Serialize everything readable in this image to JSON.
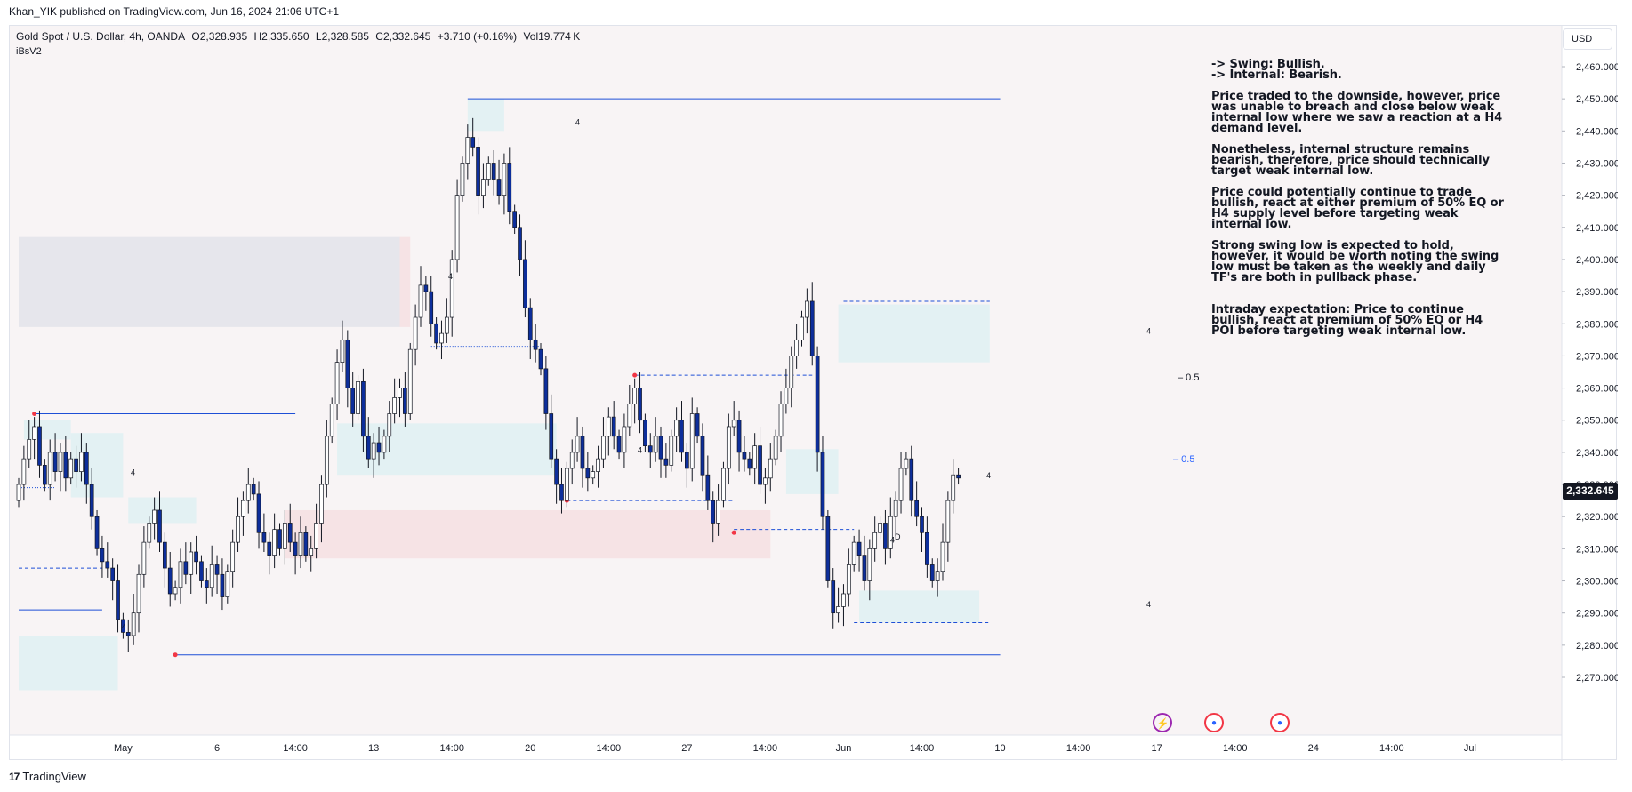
{
  "header": {
    "publish_line": "Khan_YIK published on TradingView.com, Jun 16, 2024 21:06 UTC+1"
  },
  "legend": {
    "symbol": "Gold Spot / U.S. Dollar, 4h, OANDA",
    "open": "O2,328.935",
    "high": "H2,335.650",
    "low": "L2,328.585",
    "close": "C2,332.645",
    "change": "+3.710 (+0.16%)",
    "volume": "Vol19.774 K",
    "indicator": "iBsV2"
  },
  "currency": "USD",
  "last_price_label": "2,332.645",
  "brand": {
    "name": "TradingView",
    "logo": "17"
  },
  "events": {
    "bolt_icon": "⚡",
    "flag_icon": "●"
  },
  "notes": {
    "swing": "-> Swing:  Bullish.",
    "internal": "-> Internal:  Bearish.",
    "p1": "Price traded to the downside, however, price was unable to breach and close below weak internal low where we saw a reaction at a H4 demand level.",
    "p2": "Nonetheless, internal structure remains bearish, therefore, price should technically target weak internal low.",
    "p3": "Price could potentially continue to trade bullish, react at either premium of 50% EQ or H4 supply level before targeting weak internal low.",
    "p4": "Strong swing low is expected to hold, however, it would be worth noting the swing low must be taken as the weekly and daily TF's are both in pullback phase.",
    "p5": "Intraday expectation: Price to continue bullish, react at premium of 50% EQ or H4 POI before targeting weak internal low."
  },
  "colors": {
    "bg": "#f8f4f5",
    "bull": "#ffffff",
    "bear": "#0d2e9b",
    "wick": "#131722",
    "zone_blue": "#e3f1f3",
    "zone_red": "#f6e3e5",
    "zone_grey": "#e6e6ec",
    "line_blue": "#1e4fd6",
    "pivot": "#f23645"
  },
  "chart_data": {
    "type": "candlestick",
    "title": "Gold Spot / U.S. Dollar, 4h, OANDA",
    "ylim": [
      2262,
      2468
    ],
    "y_ticks": [
      2270,
      2280,
      2290,
      2300,
      2310,
      2320,
      2330,
      2340,
      2350,
      2360,
      2370,
      2380,
      2390,
      2400,
      2410,
      2420,
      2430,
      2440,
      2450,
      2460
    ],
    "y_tick_labels": [
      "2,270.000",
      "2,280.000",
      "2,290.000",
      "2,300.000",
      "2,310.000",
      "2,320.000",
      "2,330.000",
      "2,340.000",
      "2,350.000",
      "2,360.000",
      "2,370.000",
      "2,380.000",
      "2,390.000",
      "2,400.000",
      "2,410.000",
      "2,420.000",
      "2,430.000",
      "2,440.000",
      "2,450.000",
      "2,460.000"
    ],
    "x_ticks": [
      {
        "label": "May",
        "bar": 20
      },
      {
        "label": "6",
        "bar": 38
      },
      {
        "label": "14:00",
        "bar": 53
      },
      {
        "label": "13",
        "bar": 68
      },
      {
        "label": "14:00",
        "bar": 83
      },
      {
        "label": "20",
        "bar": 98
      },
      {
        "label": "14:00",
        "bar": 113
      },
      {
        "label": "27",
        "bar": 128
      },
      {
        "label": "14:00",
        "bar": 143
      },
      {
        "label": "Jun",
        "bar": 158
      },
      {
        "label": "14:00",
        "bar": 173
      },
      {
        "label": "10",
        "bar": 188
      },
      {
        "label": "14:00",
        "bar": 203
      },
      {
        "label": "17",
        "bar": 218
      },
      {
        "label": "14:00",
        "bar": 233
      },
      {
        "label": "24",
        "bar": 248
      },
      {
        "label": "14:00",
        "bar": 263
      },
      {
        "label": "Jul",
        "bar": 278
      }
    ],
    "last_price": 2332.645,
    "closes": [
      2330,
      2338,
      2344,
      2348,
      2336,
      2330,
      2340,
      2334,
      2340,
      2332,
      2338,
      2334,
      2340,
      2330,
      2320,
      2310,
      2306,
      2304,
      2300,
      2288,
      2284,
      2283,
      2290,
      2302,
      2312,
      2318,
      2322,
      2312,
      2304,
      2296,
      2298,
      2306,
      2302,
      2309,
      2306,
      2300,
      2298,
      2305,
      2302,
      2295,
      2303,
      2312,
      2320,
      2325,
      2330,
      2327,
      2315,
      2312,
      2308,
      2316,
      2310,
      2318,
      2312,
      2308,
      2315,
      2308,
      2310,
      2318,
      2330,
      2345,
      2355,
      2368,
      2375,
      2360,
      2352,
      2362,
      2345,
      2338,
      2343,
      2340,
      2345,
      2352,
      2357,
      2360,
      2352,
      2372,
      2382,
      2392,
      2390,
      2380,
      2374,
      2377,
      2382,
      2400,
      2420,
      2430,
      2438,
      2435,
      2420,
      2425,
      2430,
      2425,
      2420,
      2430,
      2415,
      2410,
      2400,
      2385,
      2375,
      2372,
      2366,
      2352,
      2338,
      2330,
      2325,
      2335,
      2340,
      2345,
      2335,
      2332,
      2334,
      2338,
      2345,
      2351,
      2345,
      2340,
      2348,
      2355,
      2360,
      2350,
      2342,
      2340,
      2345,
      2338,
      2336,
      2345,
      2350,
      2340,
      2335,
      2352,
      2345,
      2333,
      2325,
      2318,
      2325,
      2335,
      2348,
      2350,
      2340,
      2338,
      2335,
      2342,
      2330,
      2332,
      2338,
      2345,
      2355,
      2360,
      2370,
      2375,
      2382,
      2387,
      2370,
      2340,
      2320,
      2300,
      2290,
      2292,
      2296,
      2305,
      2312,
      2308,
      2300,
      2310,
      2315,
      2318,
      2310,
      2320,
      2325,
      2335,
      2338,
      2325,
      2320,
      2315,
      2305,
      2300,
      2303,
      2312,
      2325,
      2333,
      2332
    ],
    "annotations": [
      {
        "text": "0.5",
        "price": 2363.5
      },
      {
        "text": "0.5",
        "price": 2338.0
      },
      {
        "text": "4",
        "price": 2334
      },
      {
        "text": "4",
        "price": 2286
      },
      {
        "text": "4",
        "price": 2395
      },
      {
        "text": "4",
        "price": 2443
      },
      {
        "text": "4",
        "price": 2341
      },
      {
        "text": "4",
        "price": 2333
      },
      {
        "text": "4",
        "price": 2378
      },
      {
        "text": "4",
        "price": 2293
      },
      {
        "text": "4",
        "price": 2313
      },
      {
        "text": "D",
        "price": 2314
      }
    ]
  }
}
